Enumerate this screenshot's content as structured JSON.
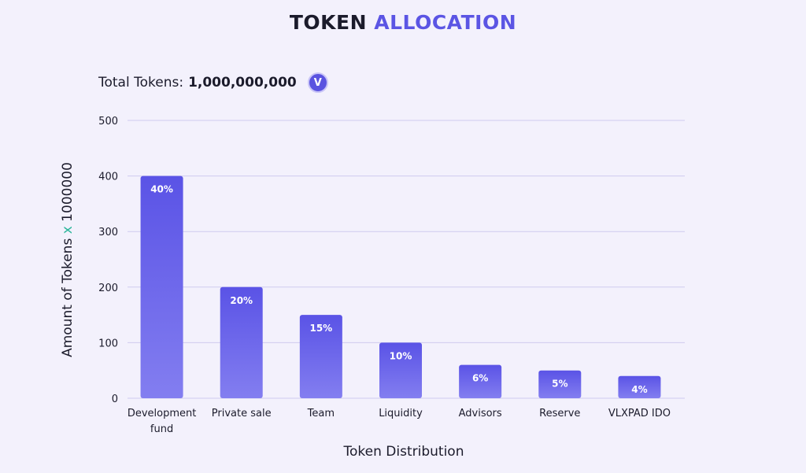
{
  "header": {
    "title_part1": "TOKEN",
    "title_part2": "ALLOCATION",
    "total_label": "Total Tokens:",
    "total_value": "1,000,000,000",
    "badge_letter": "V"
  },
  "colors": {
    "accent": "#5b55e4",
    "bar_top": "#5a53e6",
    "bar_bottom": "#837ef0",
    "grid": "#cfcbef",
    "multiplier": "#2bb59a"
  },
  "chart_data": {
    "type": "bar",
    "categories": [
      "Development fund",
      "Private sale",
      "Team",
      "Liquidity",
      "Advisors",
      "Reserve",
      "VLXPAD IDO"
    ],
    "category_lines": [
      [
        "Development",
        "fund"
      ],
      [
        "Private sale"
      ],
      [
        "Team"
      ],
      [
        "Liquidity"
      ],
      [
        "Advisors"
      ],
      [
        "Reserve"
      ],
      [
        "VLXPAD IDO"
      ]
    ],
    "values": [
      400,
      200,
      150,
      100,
      60,
      50,
      40
    ],
    "data_labels": [
      "40%",
      "20%",
      "15%",
      "10%",
      "6%",
      "5%",
      "4%"
    ],
    "ylim": [
      0,
      500
    ],
    "yticks": [
      0,
      100,
      200,
      300,
      400,
      500
    ],
    "ylabel_parts": [
      "Amount of Tokens ",
      "x",
      " 1000000"
    ],
    "xlabel": "Token Distribution",
    "grid": true
  }
}
